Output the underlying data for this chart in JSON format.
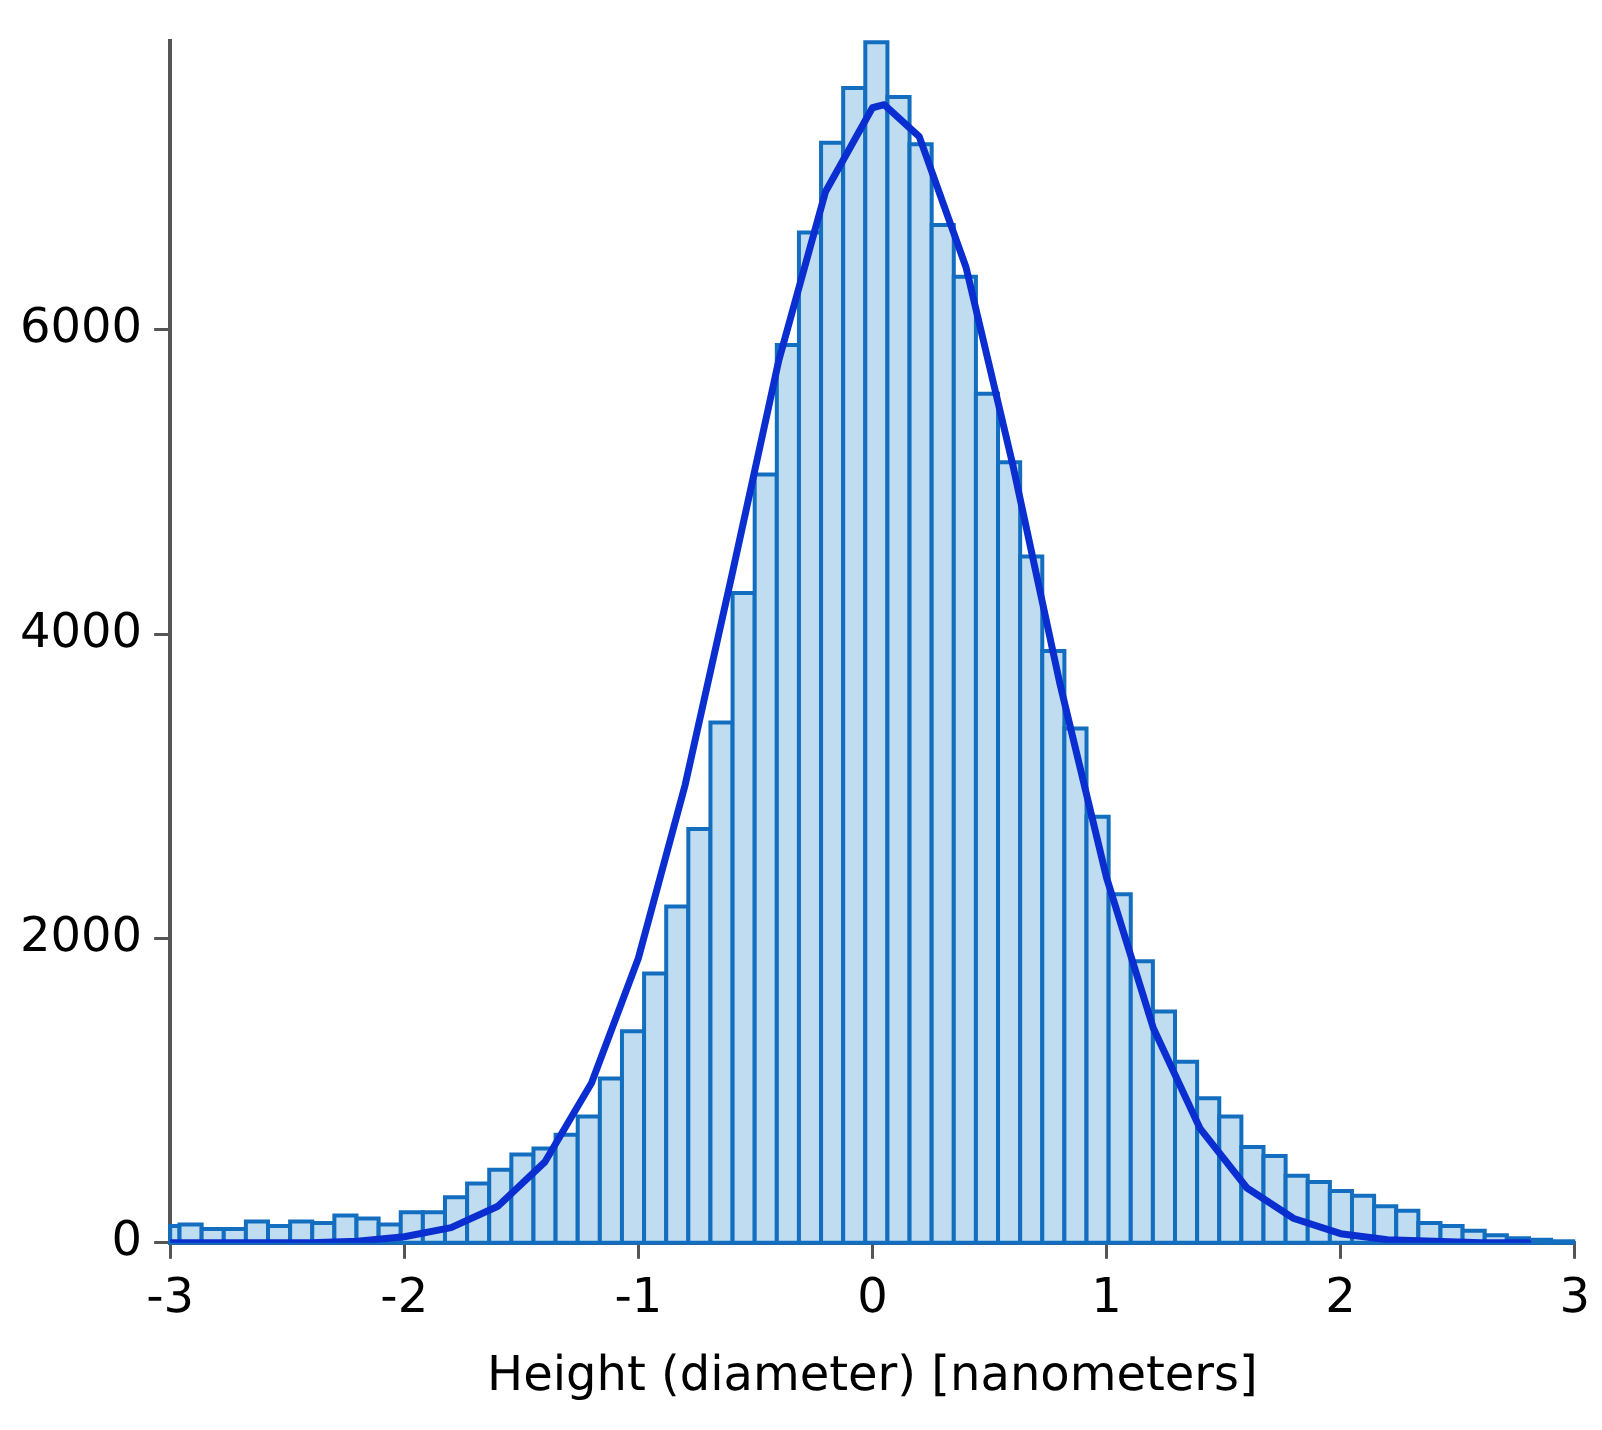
{
  "chart_data": {
    "type": "histogram",
    "xlabel": "Height (diameter) [nanometers]",
    "bins": [
      -3,
      -2.96,
      -2.8655,
      -2.771,
      -2.6765,
      -2.582,
      -2.4875,
      -2.393,
      -2.2985,
      -2.204,
      -2.1095,
      -2.015,
      -1.9205,
      -1.826,
      -1.7315,
      -1.637,
      -1.5425,
      -1.448,
      -1.3535,
      -1.259,
      -1.1645,
      -1.07,
      -0.9755,
      -0.881,
      -0.7865,
      -0.692,
      -0.5975,
      -0.503,
      -0.4085,
      -0.314,
      -0.2195,
      -0.125,
      -0.0305,
      0.064,
      0.1585,
      0.253,
      0.3475,
      0.442,
      0.5365,
      0.631,
      0.7255,
      0.82,
      0.9145,
      1.009,
      1.1035,
      1.198,
      1.2925,
      1.387,
      1.4815,
      1.576,
      1.6705,
      1.765,
      1.8595,
      1.954,
      2.0485,
      2.143,
      2.2375,
      2.332,
      2.4265,
      2.521,
      2.6155,
      2.71,
      2.8045,
      2.899,
      2.9935
    ],
    "values": [
      110,
      120,
      90,
      90,
      140,
      110,
      140,
      130,
      180,
      160,
      120,
      200,
      200,
      300,
      390,
      480,
      580,
      620,
      710,
      830,
      1080,
      1390,
      1770,
      2210,
      2720,
      3420,
      4270,
      5050,
      5900,
      6640,
      7230,
      7590,
      7890,
      7530,
      7220,
      6690,
      6350,
      5580,
      5130,
      4510,
      3890,
      3380,
      2800,
      2290,
      1850,
      1520,
      1190,
      950,
      830,
      630,
      570,
      440,
      400,
      340,
      310,
      240,
      210,
      130,
      110,
      80,
      50,
      30,
      20,
      10
    ],
    "color": "#bfdcf0",
    "series": [
      {
        "type": "line",
        "color": "#0a2ecf",
        "x": [
          -3,
          -2.6,
          -2.4,
          -2.2,
          -2,
          -1.8,
          -1.6,
          -1.4,
          -1.2,
          -1,
          -0.8,
          -0.6,
          -0.4,
          -0.2,
          0,
          0.05,
          0.2,
          0.4,
          0.6,
          0.8,
          1,
          1.2,
          1.4,
          1.6,
          1.8,
          2,
          2.2,
          2.4,
          2.6,
          2.8
        ],
        "values": [
          0,
          0,
          0,
          10,
          40,
          100,
          240,
          530,
          1050,
          1870,
          3010,
          4390,
          5800,
          6910,
          7460,
          7480,
          7270,
          6410,
          5110,
          3680,
          2400,
          1410,
          750,
          360,
          160,
          60,
          20,
          10,
          0,
          0
        ]
      }
    ],
    "xlim": [
      -3,
      3
    ],
    "xticks": [
      -3,
      -2,
      -1,
      0,
      1,
      2,
      3
    ],
    "ylim": [
      0,
      7900
    ],
    "yticks": [
      0,
      2000,
      4000,
      6000
    ],
    "grid": false,
    "legend": false,
    "marker": "none",
    "line_style": "solid"
  }
}
